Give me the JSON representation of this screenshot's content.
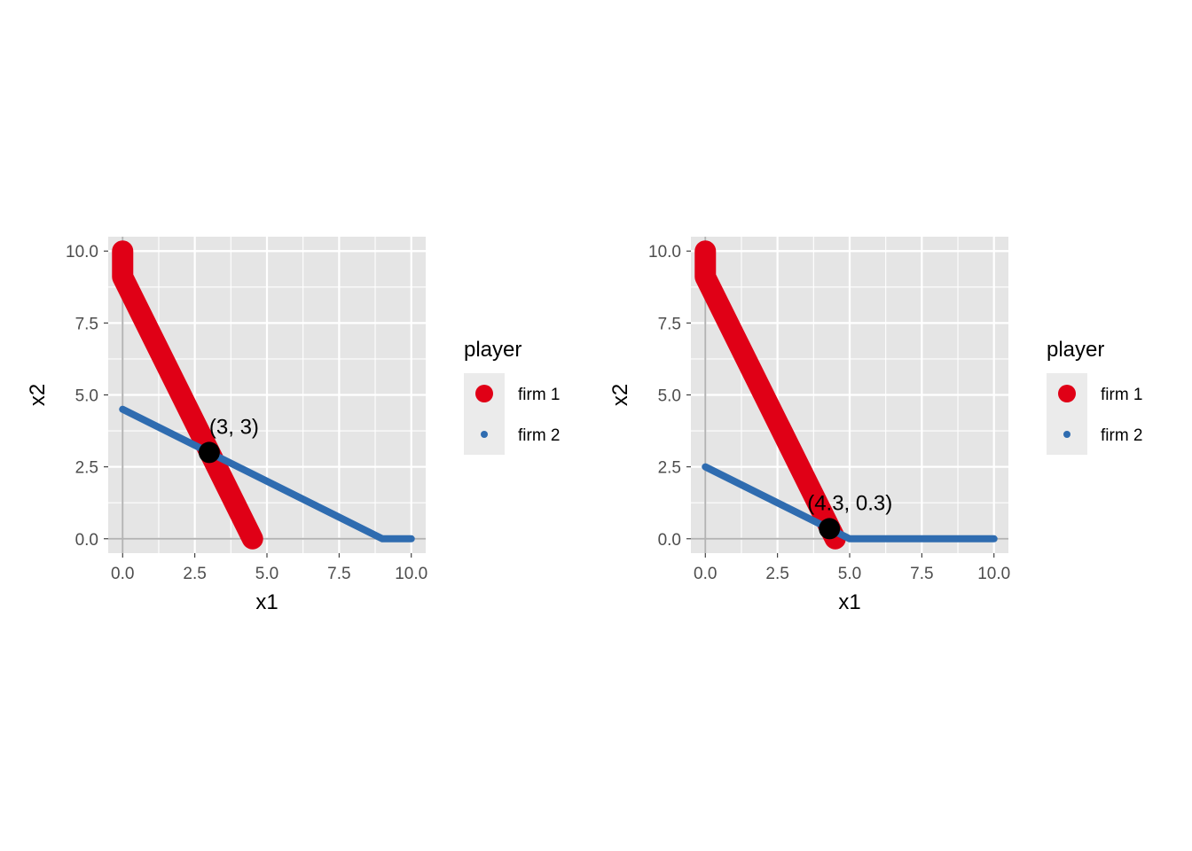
{
  "colors": {
    "panel_bg": "#E5E5E5",
    "grid": "#FFFFFF",
    "zero_axis": "#B3B3B3",
    "firm1": "#E00016",
    "firm2": "#2F6CB0",
    "equilibrium": "#000000",
    "legend_key_bg": "#EBEBEB"
  },
  "chart_data": [
    {
      "type": "line",
      "xlabel": "x1",
      "ylabel": "x2",
      "xlim": [
        0,
        10
      ],
      "ylim": [
        0,
        10
      ],
      "xticks": [
        "0.0",
        "2.5",
        "5.0",
        "7.5",
        "10.0"
      ],
      "yticks": [
        "0.0",
        "2.5",
        "5.0",
        "7.5",
        "10.0"
      ],
      "grid": true,
      "legend": {
        "title": "player",
        "position": "right",
        "entries": [
          "firm 1",
          "firm 2"
        ]
      },
      "series": [
        {
          "name": "firm 1",
          "points": [
            [
              0,
              10
            ],
            [
              0,
              9.1
            ],
            [
              4.5,
              0
            ]
          ]
        },
        {
          "name": "firm 2",
          "points": [
            [
              0,
              4.5
            ],
            [
              9,
              0
            ],
            [
              10,
              0
            ]
          ]
        }
      ],
      "equilibrium": {
        "x": 3,
        "y": 3,
        "label": "(3, 3)"
      }
    },
    {
      "type": "line",
      "xlabel": "x1",
      "ylabel": "x2",
      "xlim": [
        0,
        10
      ],
      "ylim": [
        0,
        10
      ],
      "xticks": [
        "0.0",
        "2.5",
        "5.0",
        "7.5",
        "10.0"
      ],
      "yticks": [
        "0.0",
        "2.5",
        "5.0",
        "7.5",
        "10.0"
      ],
      "grid": true,
      "legend": {
        "title": "player",
        "position": "right",
        "entries": [
          "firm 1",
          "firm 2"
        ]
      },
      "series": [
        {
          "name": "firm 1",
          "points": [
            [
              0,
              10
            ],
            [
              0,
              9.1
            ],
            [
              4.5,
              0
            ]
          ]
        },
        {
          "name": "firm 2",
          "points": [
            [
              0,
              2.5
            ],
            [
              5,
              0
            ],
            [
              10,
              0
            ]
          ]
        }
      ],
      "equilibrium": {
        "x": 4.3,
        "y": 0.35,
        "label": "(4.3, 0.3)"
      }
    }
  ]
}
